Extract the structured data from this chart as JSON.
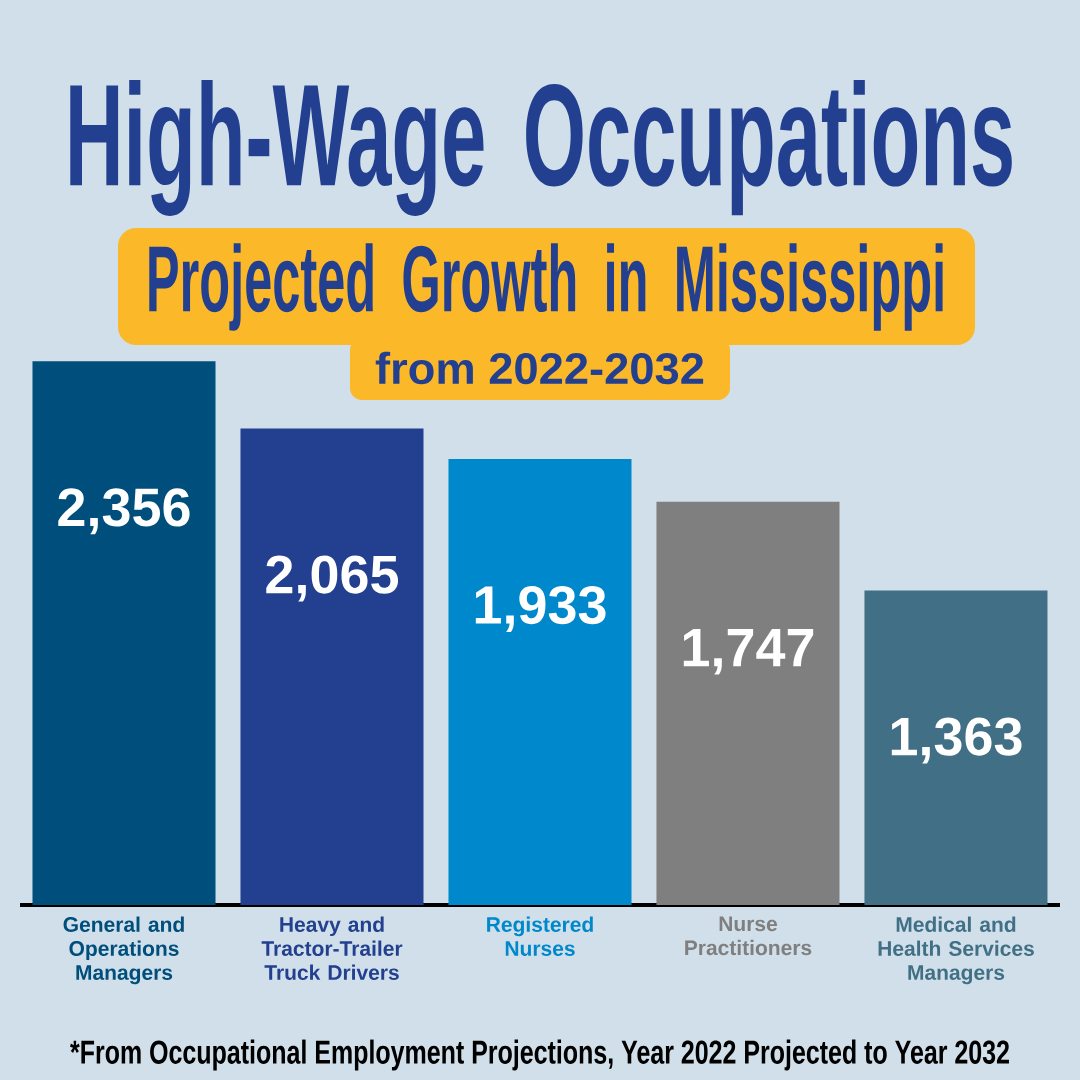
{
  "chart_data": {
    "type": "bar",
    "title": "High-Wage Occupations",
    "subtitle": "Projected Growth in Mississippi",
    "categories": [
      "General and Operations Managers",
      "Heavy and Tractor-Trailer Truck Drivers",
      "Registered Nurses",
      "Nurse Practitioners",
      "Medical and Health Services Managers"
    ],
    "values": [
      2356,
      2065,
      1933,
      1747,
      1363
    ],
    "colors": [
      "#004e7c",
      "#22408f",
      "#0088cc",
      "#7f7f7f",
      "#417086"
    ],
    "value_labels": [
      "2,356",
      "2,065",
      "1,933",
      "1,747",
      "1,363"
    ],
    "annotations": [
      "from 2022-2032",
      "*From Occupational Employment Projections, Year 2022 Projected to Year 2032"
    ]
  }
}
